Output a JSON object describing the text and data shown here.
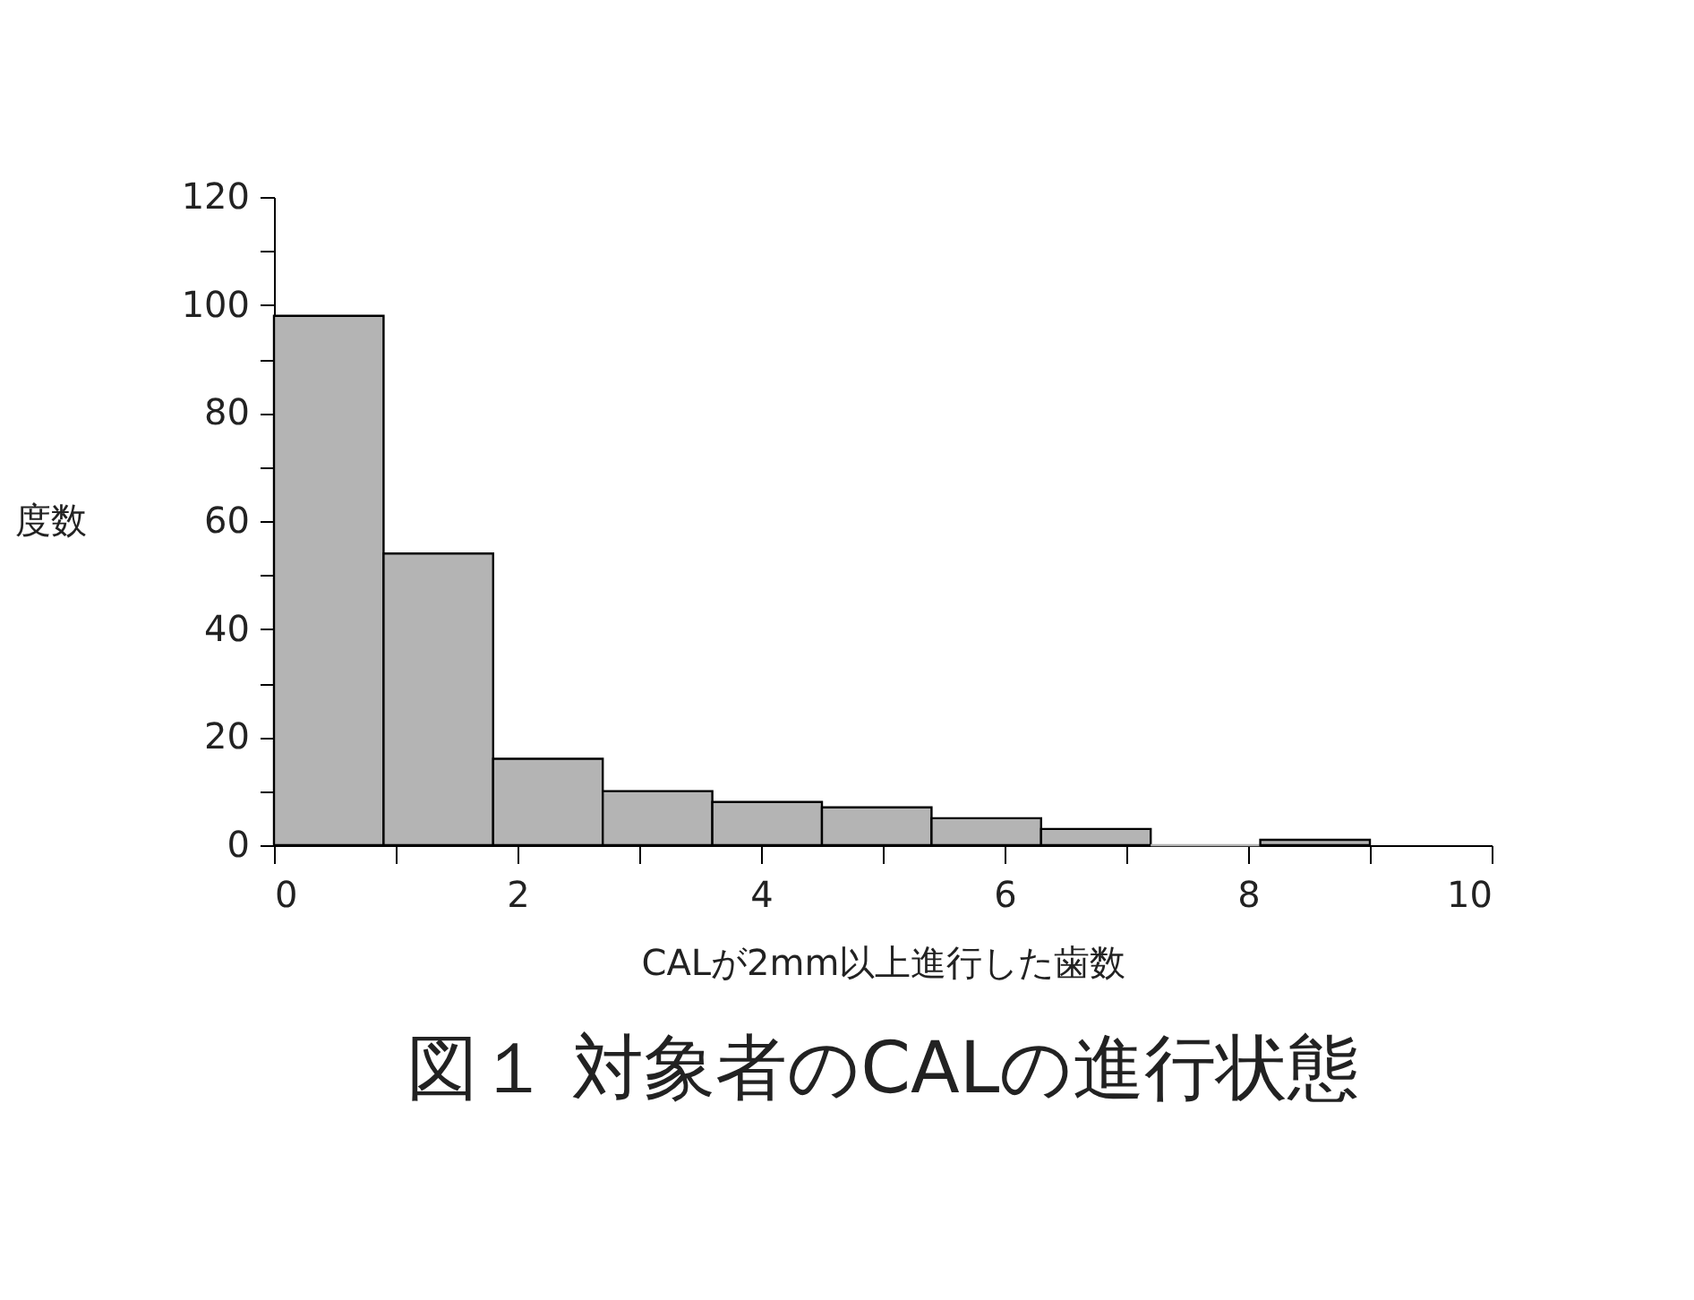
{
  "chart_data": {
    "type": "histogram",
    "title": "図１ 対象者のCALの進行状態",
    "xlabel": "CALが2mm以上進行した歯数",
    "ylabel": "度数",
    "bins": [
      0,
      0.9,
      1.8,
      2.7,
      3.6,
      4.5,
      5.4,
      6.3,
      7.2,
      8.1,
      9.0
    ],
    "values": [
      98,
      54,
      16,
      10,
      8,
      7,
      5,
      3,
      0,
      1
    ],
    "color": "#b4b4b4",
    "xlim": [
      0,
      10
    ],
    "ylim": [
      0,
      120
    ],
    "xticks": [
      0,
      {
        "value": 1,
        "label": null
      },
      2,
      {
        "value": 3,
        "label": null
      },
      4,
      {
        "value": 5,
        "label": null
      },
      6,
      {
        "value": 7,
        "label": null
      },
      8,
      {
        "value": 9,
        "label": null
      },
      10
    ],
    "yticks": [
      0,
      {
        "value": 10,
        "label": null
      },
      20,
      {
        "value": 30,
        "label": null
      },
      40,
      {
        "value": 50,
        "label": null
      },
      60,
      {
        "value": 70,
        "label": null
      },
      80,
      {
        "value": 90,
        "label": null
      },
      100,
      {
        "value": 110,
        "label": null
      },
      120
    ],
    "grid": false
  }
}
